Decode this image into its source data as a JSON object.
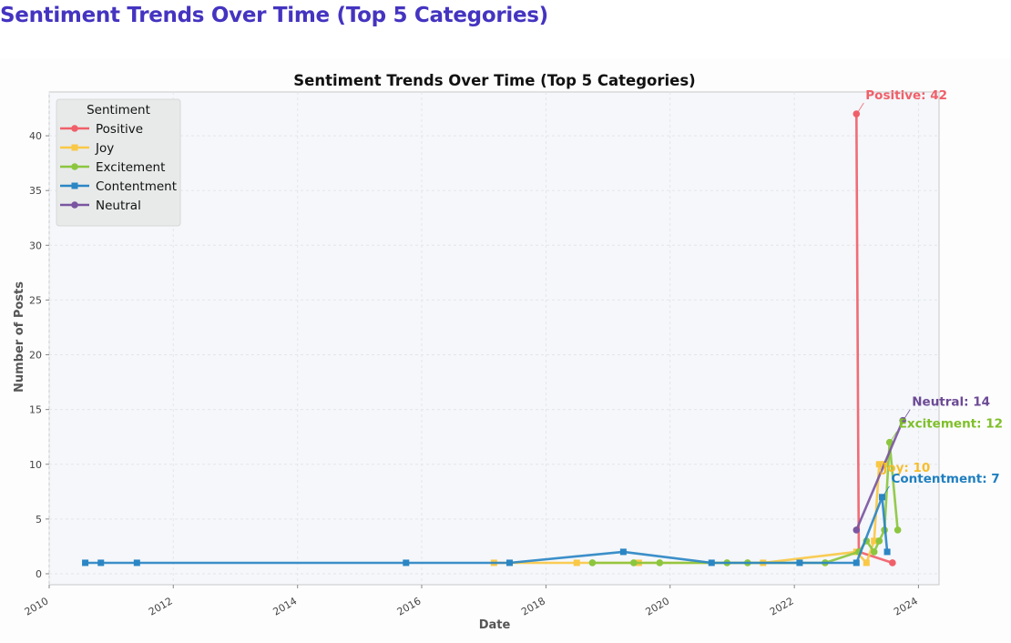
{
  "page": {
    "title": "Sentiment Trends Over Time (Top 5 Categories)"
  },
  "chart_data": {
    "type": "line",
    "title": "Sentiment Trends Over Time (Top 5 Categories)",
    "xlabel": "Date",
    "ylabel": "Number of Posts",
    "xlim": [
      "2010-01-01",
      "2024-05-01"
    ],
    "ylim": [
      -1,
      44
    ],
    "x_ticks": [
      "2010",
      "2012",
      "2014",
      "2016",
      "2018",
      "2020",
      "2022",
      "2024"
    ],
    "y_ticks": [
      0,
      5,
      10,
      15,
      20,
      25,
      30,
      35,
      40
    ],
    "grid": true,
    "legend": {
      "title": "Sentiment",
      "placement": "top-left"
    },
    "series": [
      {
        "name": "Positive",
        "color": "#f0606a",
        "marker": "circle",
        "points": [
          [
            "2023-01-01",
            42
          ],
          [
            "2023-01-15",
            2
          ],
          [
            "2023-08-01",
            1
          ]
        ],
        "annotation": "Positive: 42"
      },
      {
        "name": "Joy",
        "color": "#f9c846",
        "marker": "square",
        "points": [
          [
            "2017-03-01",
            1
          ],
          [
            "2018-07-01",
            1
          ],
          [
            "2019-07-01",
            1
          ],
          [
            "2021-07-01",
            1
          ],
          [
            "2023-01-01",
            2
          ],
          [
            "2023-03-01",
            1
          ],
          [
            "2023-04-15",
            3
          ],
          [
            "2023-05-15",
            10
          ],
          [
            "2023-06-15",
            10
          ]
        ],
        "annotation": "Joy: 10"
      },
      {
        "name": "Excitement",
        "color": "#8cc63f",
        "marker": "circle",
        "points": [
          [
            "2018-10-01",
            1
          ],
          [
            "2019-06-01",
            1
          ],
          [
            "2019-11-01",
            1
          ],
          [
            "2020-12-01",
            1
          ],
          [
            "2021-04-01",
            1
          ],
          [
            "2022-07-01",
            1
          ],
          [
            "2023-01-15",
            2
          ],
          [
            "2023-03-01",
            3
          ],
          [
            "2023-04-15",
            2
          ],
          [
            "2023-05-15",
            3
          ],
          [
            "2023-06-15",
            4
          ],
          [
            "2023-07-15",
            12
          ],
          [
            "2023-09-01",
            4
          ]
        ],
        "annotation": "Excitement: 12"
      },
      {
        "name": "Contentment",
        "color": "#2b86c4",
        "marker": "square",
        "points": [
          [
            "2010-08-01",
            1
          ],
          [
            "2010-11-01",
            1
          ],
          [
            "2011-06-01",
            1
          ],
          [
            "2015-10-01",
            1
          ],
          [
            "2017-06-01",
            1
          ],
          [
            "2019-04-01",
            2
          ],
          [
            "2020-09-01",
            1
          ],
          [
            "2022-02-01",
            1
          ],
          [
            "2023-01-01",
            1
          ],
          [
            "2023-06-01",
            7
          ],
          [
            "2023-07-01",
            2
          ]
        ],
        "annotation": "Contentment: 7"
      },
      {
        "name": "Neutral",
        "color": "#7a56a0",
        "marker": "circle",
        "points": [
          [
            "2023-01-01",
            4
          ],
          [
            "2023-10-01",
            14
          ]
        ],
        "annotation": "Neutral: 14"
      }
    ]
  }
}
